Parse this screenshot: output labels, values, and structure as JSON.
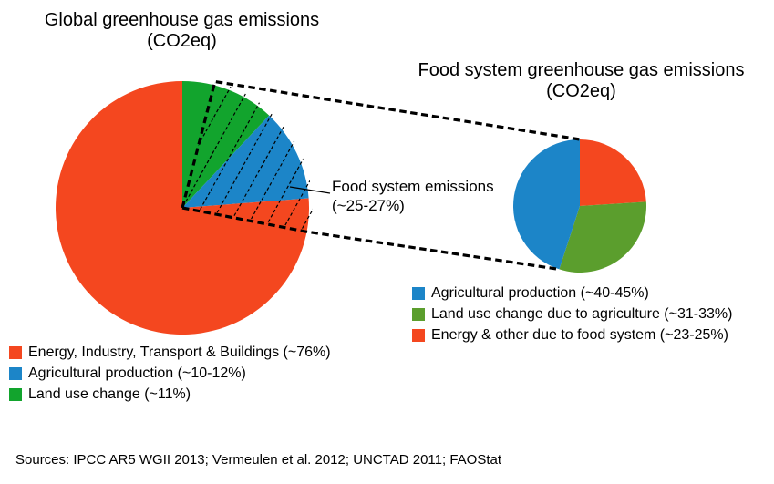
{
  "figure": {
    "annotation": {
      "line1": "Food system emissions",
      "line2": "(~25-27%)"
    },
    "sources": "Sources: IPCC AR5 WGII 2013; Vermeulen et al. 2012; UNCTAD 2011; FAOStat"
  },
  "colors": {
    "orange": "#F4471F",
    "blue": "#1C85C8",
    "bright_green": "#12A42D",
    "olive_green": "#5B9E2D",
    "line_black": "#000000"
  },
  "chart_data": [
    {
      "type": "pie",
      "title": "Global greenhouse gas emissions",
      "subtitle": "(CO2eq)",
      "slices": [
        {
          "label": "Land use change",
          "stated_pct": "~11%",
          "value": 12,
          "color": "#12A42D"
        },
        {
          "label": "Agricultural production",
          "stated_pct": "~10-12%",
          "value": 11.8,
          "color": "#1C85C8"
        },
        {
          "label": "Energy, Industry, Transport & Buildings",
          "stated_pct": "~76%",
          "value": 76.2,
          "color": "#F4471F"
        }
      ],
      "legend": [
        {
          "text": "Energy, Industry, Transport & Buildings (~76%)",
          "color": "#F4471F"
        },
        {
          "text": "Agricultural production (~10-12%)",
          "color": "#1C85C8"
        },
        {
          "text": "Land use change (~11%)",
          "color": "#12A42D"
        }
      ],
      "highlight": {
        "label": "Food system emissions",
        "pct": "~25-27%",
        "wedge_value": 24
      },
      "legend_position": "bottom-left",
      "grid": false
    },
    {
      "type": "pie",
      "title": "Food system greenhouse gas emissions",
      "subtitle": "(CO2eq)",
      "slices": [
        {
          "label": "Energy & other due to food system",
          "stated_pct": "~23-25%",
          "value": 24,
          "color": "#F4471F"
        },
        {
          "label": "Land use change due to agriculture",
          "stated_pct": "~31-33%",
          "value": 31,
          "color": "#5B9E2D"
        },
        {
          "label": "Agricultural production",
          "stated_pct": "~40-45%",
          "value": 45,
          "color": "#1C85C8"
        }
      ],
      "legend": [
        {
          "text": "Agricultural production (~40-45%)",
          "color": "#1C85C8"
        },
        {
          "text": "Land use change due to agriculture (~31-33%)",
          "color": "#5B9E2D"
        },
        {
          "text": "Energy & other due to food system (~23-25%)",
          "color": "#F4471F"
        }
      ],
      "legend_position": "bottom-right",
      "grid": false
    }
  ]
}
